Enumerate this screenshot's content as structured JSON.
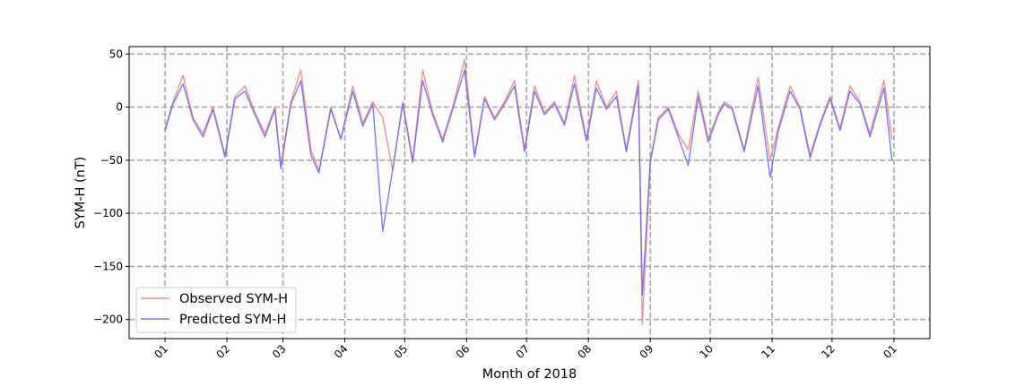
{
  "chart_data": {
    "type": "line",
    "title": "",
    "xlabel": "Month of 2018",
    "ylabel": "SYM-H (nT)",
    "x_tick_labels": [
      "01",
      "02",
      "03",
      "04",
      "05",
      "06",
      "07",
      "08",
      "09",
      "10",
      "11",
      "12",
      "01"
    ],
    "x_tick_dates": [
      "2018-01-01",
      "2018-02-01",
      "2018-03-01",
      "2018-04-01",
      "2018-05-01",
      "2018-06-01",
      "2018-07-01",
      "2018-08-01",
      "2018-09-01",
      "2018-10-01",
      "2018-11-01",
      "2018-12-01",
      "2019-01-01"
    ],
    "xlim": [
      "2017-12-14",
      "2019-01-19"
    ],
    "y_ticks": [
      50,
      0,
      -50,
      -100,
      -150,
      -200
    ],
    "ylim": [
      -218,
      57
    ],
    "grid": true,
    "legend_position": "lower-left",
    "series": [
      {
        "name": "Observed SYM-H",
        "color": "#f08080",
        "x": [
          "2018-01-01",
          "2018-01-05",
          "2018-01-10",
          "2018-01-15",
          "2018-01-20",
          "2018-01-25",
          "2018-01-31",
          "2018-02-05",
          "2018-02-10",
          "2018-02-15",
          "2018-02-20",
          "2018-02-25",
          "2018-02-28",
          "2018-03-05",
          "2018-03-10",
          "2018-03-15",
          "2018-03-19",
          "2018-03-25",
          "2018-03-30",
          "2018-04-05",
          "2018-04-10",
          "2018-04-15",
          "2018-04-20",
          "2018-04-25",
          "2018-04-30",
          "2018-05-05",
          "2018-05-10",
          "2018-05-15",
          "2018-05-20",
          "2018-05-25",
          "2018-05-31",
          "2018-06-05",
          "2018-06-10",
          "2018-06-15",
          "2018-06-20",
          "2018-06-25",
          "2018-06-30",
          "2018-07-05",
          "2018-07-10",
          "2018-07-15",
          "2018-07-20",
          "2018-07-25",
          "2018-07-31",
          "2018-08-05",
          "2018-08-10",
          "2018-08-15",
          "2018-08-20",
          "2018-08-26",
          "2018-08-28",
          "2018-09-01",
          "2018-09-05",
          "2018-09-10",
          "2018-09-15",
          "2018-09-20",
          "2018-09-25",
          "2018-09-30",
          "2018-10-05",
          "2018-10-08",
          "2018-10-12",
          "2018-10-18",
          "2018-10-25",
          "2018-10-31",
          "2018-11-04",
          "2018-11-10",
          "2018-11-15",
          "2018-11-20",
          "2018-11-25",
          "2018-11-30",
          "2018-12-05",
          "2018-12-10",
          "2018-12-15",
          "2018-12-20",
          "2018-12-27",
          "2018-12-31"
        ],
        "values": [
          -20,
          5,
          30,
          -10,
          -25,
          0,
          -45,
          10,
          20,
          -5,
          -25,
          0,
          -55,
          5,
          35,
          -40,
          -60,
          0,
          -30,
          20,
          -15,
          5,
          -10,
          -60,
          5,
          -50,
          35,
          -5,
          -30,
          0,
          45,
          -45,
          10,
          -10,
          5,
          25,
          -40,
          20,
          -5,
          5,
          -15,
          30,
          -30,
          25,
          0,
          15,
          -40,
          25,
          -205,
          -50,
          -10,
          0,
          -25,
          -40,
          15,
          -30,
          -5,
          5,
          0,
          -40,
          28,
          -50,
          -20,
          20,
          0,
          -45,
          -15,
          10,
          -20,
          20,
          5,
          -25,
          25,
          -30
        ]
      },
      {
        "name": "Predicted SYM-H",
        "color": "#6666ee",
        "x": [
          "2018-01-01",
          "2018-01-05",
          "2018-01-10",
          "2018-01-15",
          "2018-01-20",
          "2018-01-25",
          "2018-01-31",
          "2018-02-05",
          "2018-02-10",
          "2018-02-15",
          "2018-02-20",
          "2018-02-25",
          "2018-02-28",
          "2018-03-05",
          "2018-03-10",
          "2018-03-15",
          "2018-03-19",
          "2018-03-25",
          "2018-03-30",
          "2018-04-05",
          "2018-04-10",
          "2018-04-15",
          "2018-04-20",
          "2018-04-25",
          "2018-04-30",
          "2018-05-05",
          "2018-05-10",
          "2018-05-15",
          "2018-05-20",
          "2018-05-25",
          "2018-05-31",
          "2018-06-05",
          "2018-06-10",
          "2018-06-15",
          "2018-06-20",
          "2018-06-25",
          "2018-06-30",
          "2018-07-05",
          "2018-07-10",
          "2018-07-15",
          "2018-07-20",
          "2018-07-25",
          "2018-07-31",
          "2018-08-05",
          "2018-08-10",
          "2018-08-15",
          "2018-08-20",
          "2018-08-26",
          "2018-08-28",
          "2018-09-01",
          "2018-09-05",
          "2018-09-10",
          "2018-09-15",
          "2018-09-20",
          "2018-09-25",
          "2018-09-30",
          "2018-10-05",
          "2018-10-08",
          "2018-10-12",
          "2018-10-18",
          "2018-10-25",
          "2018-10-31",
          "2018-11-04",
          "2018-11-10",
          "2018-11-15",
          "2018-11-20",
          "2018-11-25",
          "2018-11-30",
          "2018-12-05",
          "2018-12-10",
          "2018-12-15",
          "2018-12-20",
          "2018-12-27",
          "2018-12-31"
        ],
        "values": [
          -22,
          3,
          22,
          -12,
          -28,
          -2,
          -47,
          8,
          15,
          -7,
          -28,
          -2,
          -58,
          3,
          25,
          -45,
          -62,
          -2,
          -30,
          15,
          -18,
          3,
          -117,
          -58,
          3,
          -52,
          25,
          -7,
          -33,
          -2,
          35,
          -47,
          8,
          -12,
          3,
          20,
          -42,
          15,
          -7,
          3,
          -17,
          22,
          -32,
          18,
          -2,
          10,
          -42,
          20,
          -177,
          -52,
          -12,
          -2,
          -28,
          -55,
          10,
          -33,
          -7,
          3,
          -2,
          -42,
          20,
          -66,
          -23,
          15,
          -2,
          -48,
          -17,
          8,
          -22,
          15,
          3,
          -28,
          18,
          -50
        ]
      }
    ]
  }
}
